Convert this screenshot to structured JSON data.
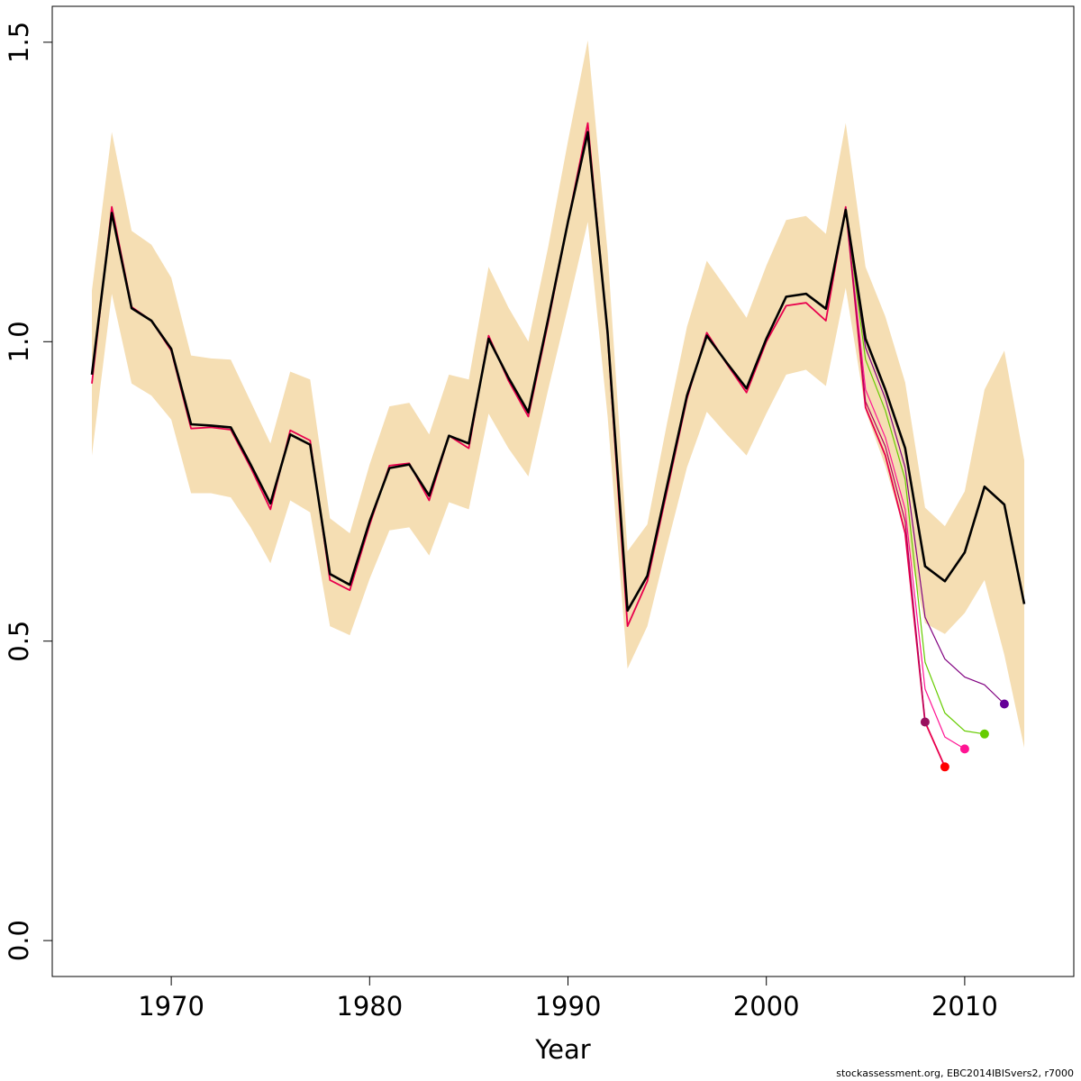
{
  "chart_data": {
    "type": "line",
    "title": "",
    "xlabel": "Year",
    "ylabel": "",
    "xlim": [
      1964,
      2015.5
    ],
    "ylim": [
      -0.06,
      1.56
    ],
    "x_ticks": [
      1970,
      1980,
      1990,
      2000,
      2010
    ],
    "y_ticks": [
      0.0,
      0.5,
      1.0,
      1.5
    ],
    "y_tick_labels": [
      "0.0",
      "0.5",
      "1.0",
      "1.5"
    ],
    "grid": false,
    "legend": "none",
    "band_color": "#f5deb3",
    "base": {
      "color": "#000000",
      "x": [
        1966,
        1967,
        1968,
        1969,
        1970,
        1971,
        1972,
        1973,
        1974,
        1975,
        1976,
        1977,
        1978,
        1979,
        1980,
        1981,
        1982,
        1983,
        1984,
        1985,
        1986,
        1987,
        1988,
        1989,
        1990,
        1991,
        1992,
        1993,
        1994,
        1995,
        1996,
        1997,
        1998,
        1999,
        2000,
        2001,
        2002,
        2003,
        2004,
        2005,
        2006,
        2007,
        2008,
        2009,
        2010,
        2011,
        2012,
        2013
      ],
      "y": [
        0.945,
        1.215,
        1.056,
        1.035,
        0.988,
        0.862,
        0.86,
        0.857,
        0.795,
        0.73,
        0.845,
        0.828,
        0.612,
        0.594,
        0.7,
        0.789,
        0.795,
        0.743,
        0.843,
        0.83,
        1.005,
        0.94,
        0.882,
        1.038,
        1.2,
        1.35,
        1.015,
        0.551,
        0.609,
        0.76,
        0.91,
        1.01,
        0.965,
        0.922,
        1.005,
        1.075,
        1.08,
        1.055,
        1.22,
        1.005,
        0.92,
        0.822,
        0.625,
        0.6,
        0.648,
        0.758,
        0.728,
        0.562
      ],
      "lower": [
        0.81,
        1.08,
        0.93,
        0.91,
        0.87,
        0.747,
        0.747,
        0.74,
        0.69,
        0.63,
        0.735,
        0.715,
        0.525,
        0.51,
        0.604,
        0.685,
        0.69,
        0.643,
        0.732,
        0.72,
        0.88,
        0.822,
        0.775,
        0.92,
        1.058,
        1.2,
        0.875,
        0.454,
        0.525,
        0.66,
        0.79,
        0.883,
        0.845,
        0.81,
        0.88,
        0.945,
        0.953,
        0.926,
        1.09,
        0.885,
        0.792,
        0.68,
        0.53,
        0.512,
        0.547,
        0.602,
        0.477,
        0.322
      ],
      "upper": [
        1.085,
        1.35,
        1.185,
        1.162,
        1.107,
        0.977,
        0.972,
        0.97,
        0.9,
        0.83,
        0.95,
        0.937,
        0.705,
        0.68,
        0.795,
        0.892,
        0.898,
        0.845,
        0.945,
        0.937,
        1.125,
        1.057,
        1.0,
        1.158,
        1.335,
        1.503,
        1.15,
        0.65,
        0.695,
        0.865,
        1.025,
        1.135,
        1.088,
        1.04,
        1.127,
        1.203,
        1.21,
        1.18,
        1.365,
        1.125,
        1.042,
        0.932,
        0.723,
        0.692,
        0.75,
        0.92,
        0.985,
        0.802
      ]
    },
    "series": [
      {
        "color": "#e8004d",
        "x": [
          1966,
          1967,
          1968,
          1969,
          1970,
          1971,
          1972,
          1973,
          1974,
          1975,
          1976,
          1977,
          1978,
          1979,
          1980,
          1981,
          1982,
          1983,
          1984,
          1985,
          1986,
          1987,
          1988,
          1989,
          1990,
          1991,
          1992,
          1993,
          1994,
          1995,
          1996,
          1997,
          1998,
          1999,
          2000,
          2001,
          2002,
          2003,
          2004,
          2005,
          2006,
          2007,
          2008,
          2009
        ],
        "y": [
          0.93,
          1.225,
          1.058,
          1.035,
          0.985,
          0.855,
          0.857,
          0.853,
          0.79,
          0.72,
          0.852,
          0.835,
          0.602,
          0.585,
          0.694,
          0.793,
          0.797,
          0.735,
          0.843,
          0.822,
          1.01,
          0.935,
          0.875,
          1.032,
          1.2,
          1.365,
          1.01,
          0.525,
          0.6,
          0.752,
          0.905,
          1.015,
          0.963,
          0.915,
          1.0,
          1.06,
          1.065,
          1.035,
          1.225,
          0.89,
          0.81,
          0.68,
          0.365,
          0.29
        ]
      },
      {
        "color": "#ff1493",
        "x": [
          2004,
          2005,
          2006,
          2007,
          2008,
          2009,
          2010
        ],
        "y": [
          1.222,
          0.92,
          0.84,
          0.72,
          0.42,
          0.34,
          0.32
        ]
      },
      {
        "color": "#66cc00",
        "x": [
          2004,
          2005,
          2006,
          2007,
          2008,
          2009,
          2010,
          2011
        ],
        "y": [
          1.22,
          0.97,
          0.885,
          0.77,
          0.465,
          0.38,
          0.35,
          0.345
        ]
      },
      {
        "color": "#800080",
        "x": [
          2004,
          2005,
          2006,
          2007,
          2008,
          2009,
          2010,
          2011,
          2012
        ],
        "y": [
          1.218,
          0.99,
          0.905,
          0.79,
          0.54,
          0.47,
          0.44,
          0.427,
          0.395
        ]
      },
      {
        "color": "#b0005a",
        "x": [
          2004,
          2005,
          2006,
          2007,
          2008
        ],
        "y": [
          1.224,
          0.9,
          0.825,
          0.7,
          0.365
        ]
      }
    ],
    "endpoints": [
      {
        "x": 2008,
        "y": 0.365,
        "color": "#99105e"
      },
      {
        "x": 2009,
        "y": 0.29,
        "color": "#ff0000"
      },
      {
        "x": 2010,
        "y": 0.32,
        "color": "#ff1493"
      },
      {
        "x": 2011,
        "y": 0.345,
        "color": "#66cc00"
      },
      {
        "x": 2012,
        "y": 0.395,
        "color": "#660099"
      }
    ]
  },
  "footer": {
    "source": "stockassessment.org, EBC2014IBISvers2, r7000"
  }
}
